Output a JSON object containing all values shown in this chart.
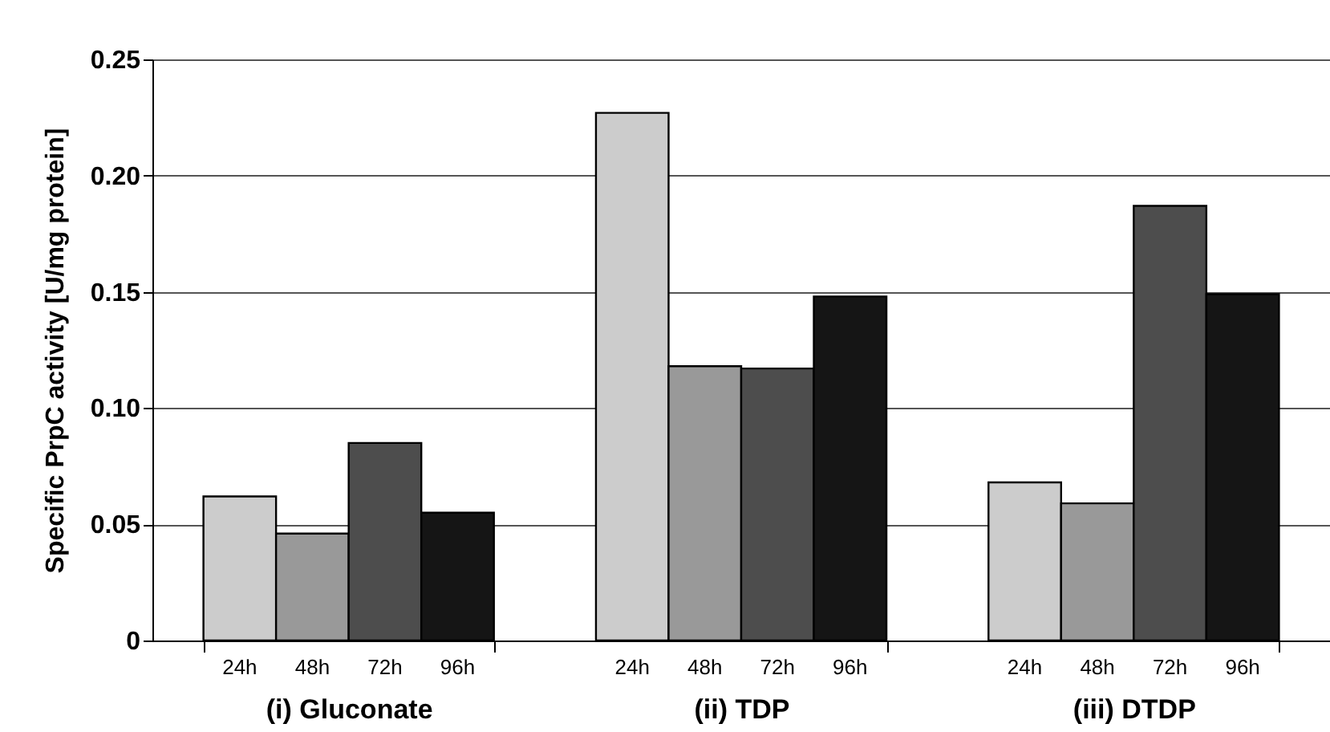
{
  "chart_data": {
    "type": "bar",
    "ylabel": "Specific PrpC activity  [U/mg protein]",
    "categories": [
      "(i) Gluconate",
      "(ii) TDP",
      "(iii) DTDP"
    ],
    "series": [
      {
        "name": "24h",
        "color": "#cccccc",
        "values": [
          0.062,
          0.227,
          0.068
        ]
      },
      {
        "name": "48h",
        "color": "#999999",
        "values": [
          0.046,
          0.118,
          0.059
        ]
      },
      {
        "name": "72h",
        "color": "#4d4d4d",
        "values": [
          0.085,
          0.117,
          0.187
        ]
      },
      {
        "name": "96h",
        "color": "#151515",
        "values": [
          0.055,
          0.148,
          0.149
        ]
      }
    ],
    "ylim": [
      0,
      0.25
    ],
    "yticks": [
      0,
      0.05,
      {
        "value": 0.1,
        "label": "0.10"
      },
      0.15,
      {
        "value": 0.2,
        "label": "0.20"
      },
      0.25
    ],
    "grid": "y",
    "legend": false
  }
}
